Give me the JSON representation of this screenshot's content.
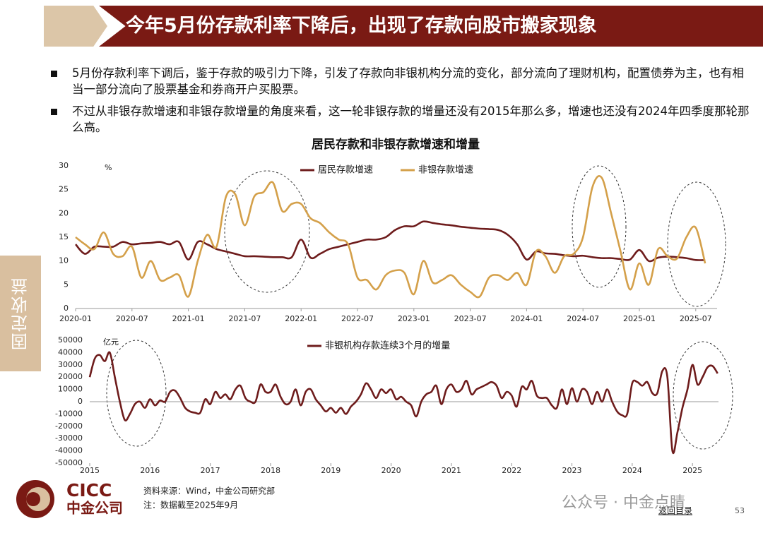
{
  "header": {
    "title": "今年5月份存款利率下降后，出现了存款向股市搬家现象"
  },
  "bullets": [
    "5月份存款利率下调后，鉴于存款的吸引力下降，引发了存款向非银机构分流的变化，部分流向了理财机构，配置债券为主，也有相当一部分流向了股票基金和券商开户买股票。",
    "不过从非银存款增速和非银存款增量的角度来看，这一轮非银存款的增量还没有2015年那么多，增速也还没有2024年四季度那轮那么高。"
  ],
  "sidebar": "固定收益",
  "chart_data": [
    {
      "type": "line",
      "title": "居民存款和非银存款增速和增量",
      "y_label": "%",
      "categories": [
        "2020-01",
        null,
        null,
        null,
        null,
        null,
        "2020-07",
        null,
        null,
        null,
        null,
        null,
        "2021-01",
        null,
        null,
        null,
        null,
        null,
        "2021-07",
        null,
        null,
        null,
        null,
        null,
        "2022-01",
        null,
        null,
        null,
        null,
        null,
        "2022-07",
        null,
        null,
        null,
        null,
        null,
        "2023-01",
        null,
        null,
        null,
        null,
        null,
        "2023-07",
        null,
        null,
        null,
        null,
        null,
        "2024-01",
        null,
        null,
        null,
        null,
        null,
        "2024-07",
        null,
        null,
        null,
        null,
        null,
        "2025-01",
        null,
        null,
        null,
        null,
        null,
        "2025-07",
        null
      ],
      "series": [
        {
          "name": "居民存款增速",
          "color": "#6e1c1c",
          "values": [
            13.5,
            11.5,
            13,
            13,
            13,
            14,
            13.5,
            13.7,
            13.8,
            14,
            13.5,
            14,
            10.3,
            14,
            13.5,
            12.5,
            12,
            11.5,
            11,
            11,
            10.9,
            10.8,
            10.8,
            10.8,
            14.5,
            10.7,
            11.5,
            12.5,
            13,
            13.5,
            14,
            14.5,
            14.5,
            15,
            16.5,
            17.3,
            17.3,
            18.3,
            18,
            17.7,
            17.5,
            17.2,
            17,
            16.8,
            16.7,
            16.5,
            15.5,
            13.5,
            10.3,
            12,
            11.6,
            11.5,
            11.2,
            11,
            11.1,
            10.8,
            10.6,
            10.6,
            10.4,
            10.3,
            12.3,
            10,
            10.7,
            10.9,
            10.8,
            10.6,
            10.2,
            10.2
          ]
        },
        {
          "name": "非银存款增速",
          "color": "#d4a04a",
          "values": [
            15,
            13.5,
            12.5,
            16,
            11.5,
            11,
            13,
            6.5,
            10,
            6,
            6.5,
            7,
            2.5,
            10,
            15.5,
            13,
            23.5,
            24,
            17.5,
            23.5,
            24.5,
            26.5,
            20.5,
            22,
            22,
            19,
            18,
            16,
            14.5,
            13.5,
            6.5,
            6,
            4,
            7,
            8,
            7.5,
            3,
            10,
            5.5,
            6,
            7,
            5,
            3.5,
            2.5,
            6.5,
            7,
            6,
            7.5,
            5,
            12,
            11,
            7.5,
            11,
            11.5,
            15,
            25.5,
            27.5,
            20,
            12,
            4,
            9.5,
            5,
            12.5,
            11,
            10.5,
            15,
            17,
            9.5
          ]
        }
      ],
      "ylim": [
        0,
        30
      ],
      "yticks": [
        0,
        5,
        10,
        15,
        20,
        25,
        30
      ],
      "legend": "top"
    },
    {
      "type": "line",
      "y_label": "亿元",
      "categories": [
        "2015",
        null,
        null,
        null,
        null,
        null,
        null,
        null,
        null,
        null,
        null,
        null,
        "2016",
        null,
        null,
        null,
        null,
        null,
        null,
        null,
        null,
        null,
        null,
        null,
        "2017",
        null,
        null,
        null,
        null,
        null,
        null,
        null,
        null,
        null,
        null,
        null,
        "2018",
        null,
        null,
        null,
        null,
        null,
        null,
        null,
        null,
        null,
        null,
        null,
        "2019",
        null,
        null,
        null,
        null,
        null,
        null,
        null,
        null,
        null,
        null,
        null,
        "2020",
        null,
        null,
        null,
        null,
        null,
        null,
        null,
        null,
        null,
        null,
        null,
        "2021",
        null,
        null,
        null,
        null,
        null,
        null,
        null,
        null,
        null,
        null,
        null,
        "2022",
        null,
        null,
        null,
        null,
        null,
        null,
        null,
        null,
        null,
        null,
        null,
        "2023",
        null,
        null,
        null,
        null,
        null,
        null,
        null,
        null,
        null,
        null,
        null,
        "2024",
        null,
        null,
        null,
        null,
        null,
        null,
        null,
        null,
        null,
        null,
        null,
        "2025",
        null,
        null,
        null,
        null,
        null
      ],
      "series": [
        {
          "name": "非银机构存款连续3个月的增量",
          "color": "#6e1c1c",
          "values": [
            20000,
            35000,
            38000,
            33000,
            40000,
            20000,
            0,
            -15000,
            -10000,
            -2000,
            0,
            -5000,
            2000,
            -3000,
            1000,
            0,
            8000,
            9000,
            3000,
            -5000,
            -8000,
            -9000,
            -9000,
            2000,
            -2000,
            8000,
            3000,
            6000,
            2000,
            10000,
            13000,
            3000,
            0,
            0,
            14000,
            8000,
            8000,
            14000,
            4000,
            -2000,
            0,
            10000,
            -3000,
            8000,
            10000,
            2000,
            -3000,
            -8000,
            -5000,
            -9000,
            -5000,
            -10000,
            -4000,
            0,
            6000,
            15000,
            10000,
            3000,
            10000,
            7000,
            10000,
            2000,
            4000,
            0,
            -3000,
            -12000,
            0,
            6000,
            8000,
            13000,
            -2000,
            10000,
            14000,
            8000,
            10000,
            17000,
            6000,
            10000,
            12000,
            14000,
            16000,
            13000,
            3000,
            8000,
            5000,
            -4000,
            12000,
            10000,
            17000,
            5000,
            3000,
            3000,
            -3000,
            -5000,
            10000,
            -2000,
            11000,
            0,
            10000,
            8000,
            -2000,
            8000,
            0,
            10000,
            0,
            -8000,
            -11000,
            -10000,
            15000,
            16000,
            13000,
            16000,
            7000,
            7000,
            25000,
            20000,
            -40000,
            -25000,
            -5000,
            10000,
            30000,
            14000,
            20000,
            28000,
            29000,
            23000
          ]
        }
      ],
      "ylim": [
        -50000,
        50000
      ],
      "yticks": [
        -50000,
        -40000,
        -30000,
        -20000,
        -10000,
        0,
        10000,
        20000,
        30000,
        40000,
        50000
      ],
      "legend": "top"
    }
  ],
  "footer": {
    "logo_en": "CICC",
    "logo_cn": "中金公司",
    "source": "资料来源：Wind，中金公司研究部",
    "note": "注：数据截至2025年9月",
    "watermark": "公众号 · 中金点睛",
    "link": "返回目录",
    "page": "53"
  }
}
